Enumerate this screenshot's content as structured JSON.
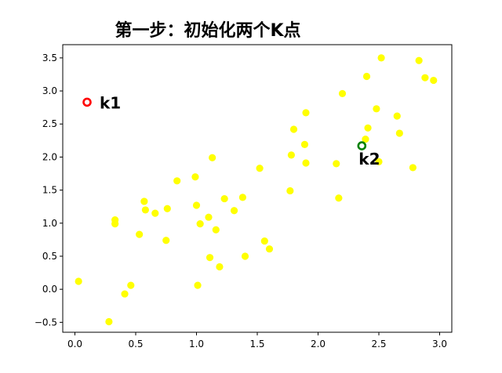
{
  "chart_data": {
    "type": "scatter",
    "title": "第一步：初始化两个K点",
    "xlabel": "",
    "ylabel": "",
    "xlim": [
      -0.1,
      3.1
    ],
    "ylim": [
      -0.65,
      3.7
    ],
    "xticks": [
      "0.0",
      "0.5",
      "1.0",
      "1.5",
      "2.0",
      "2.5",
      "3.0"
    ],
    "yticks": [
      "−0.5",
      "0.0",
      "0.5",
      "1.0",
      "1.5",
      "2.0",
      "2.5",
      "3.0",
      "3.5"
    ],
    "grid": false,
    "colors": {
      "points": "#ffff00",
      "k1": "#ff0000",
      "k2": "#008000"
    },
    "series": [
      {
        "values": [
          [
            0.03,
            0.12
          ],
          [
            0.28,
            -0.49
          ],
          [
            0.33,
            1.05
          ],
          [
            0.33,
            0.99
          ],
          [
            0.41,
            -0.07
          ],
          [
            0.46,
            0.06
          ],
          [
            0.53,
            0.83
          ],
          [
            0.57,
            1.33
          ],
          [
            0.58,
            1.2
          ],
          [
            0.66,
            1.15
          ],
          [
            0.75,
            0.74
          ],
          [
            0.76,
            1.22
          ],
          [
            0.84,
            1.64
          ],
          [
            0.99,
            1.7
          ],
          [
            1.0,
            1.27
          ],
          [
            1.01,
            0.06
          ],
          [
            1.03,
            0.99
          ],
          [
            1.1,
            1.09
          ],
          [
            1.11,
            0.48
          ],
          [
            1.13,
            1.99
          ],
          [
            1.16,
            0.9
          ],
          [
            1.19,
            0.34
          ],
          [
            1.23,
            1.37
          ],
          [
            1.31,
            1.19
          ],
          [
            1.38,
            1.39
          ],
          [
            1.4,
            0.5
          ],
          [
            1.52,
            1.83
          ],
          [
            1.56,
            0.73
          ],
          [
            1.6,
            0.61
          ],
          [
            1.77,
            1.49
          ],
          [
            1.78,
            2.03
          ],
          [
            1.8,
            2.42
          ],
          [
            1.89,
            2.19
          ],
          [
            1.9,
            1.91
          ],
          [
            1.9,
            2.67
          ],
          [
            2.15,
            1.9
          ],
          [
            2.17,
            1.38
          ],
          [
            2.2,
            2.96
          ],
          [
            2.39,
            2.27
          ],
          [
            2.4,
            3.22
          ],
          [
            2.41,
            2.44
          ],
          [
            2.48,
            2.73
          ],
          [
            2.5,
            1.93
          ],
          [
            2.52,
            3.5
          ],
          [
            2.65,
            2.62
          ],
          [
            2.67,
            2.36
          ],
          [
            2.78,
            1.84
          ],
          [
            2.83,
            3.46
          ],
          [
            2.88,
            3.2
          ],
          [
            2.95,
            3.16
          ]
        ]
      }
    ],
    "centroids": [
      {
        "label": "k1",
        "x": 0.1,
        "y": 2.83
      },
      {
        "label": "k2",
        "x": 2.36,
        "y": 2.17
      }
    ]
  }
}
